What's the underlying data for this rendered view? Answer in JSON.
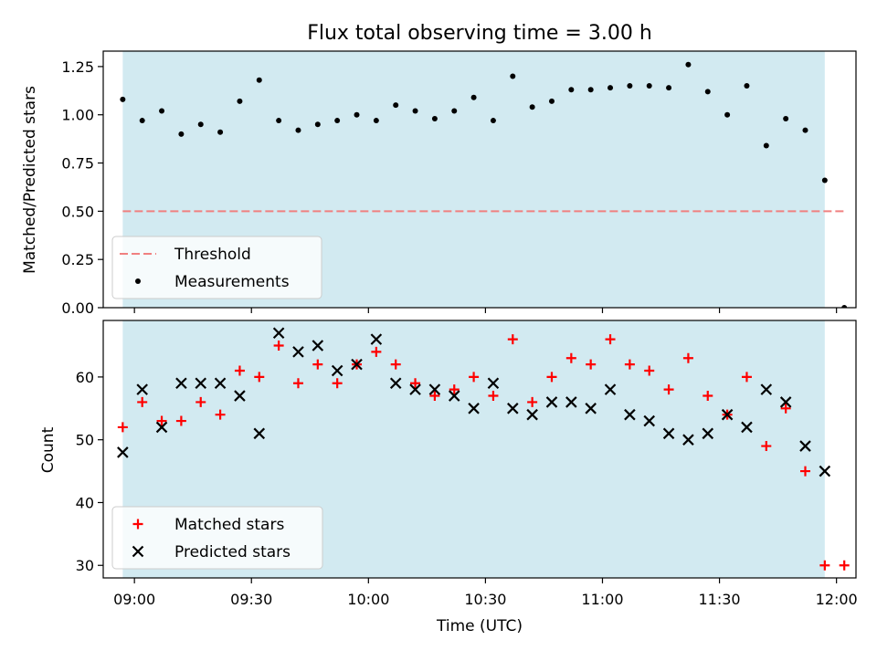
{
  "chart_data": {
    "type": "scatter",
    "title": "Flux total observing time = 3.00 h",
    "xlabel": "Time (UTC)",
    "xticks": [
      "09:00",
      "09:30",
      "10:00",
      "10:30",
      "11:00",
      "11:30",
      "12:00"
    ],
    "xlim": [
      "08:52",
      "12:05"
    ],
    "shaded_span": [
      "08:57",
      "11:57"
    ],
    "colors": {
      "shade": "#add8e6",
      "threshold": "#f08080",
      "measurement": "#000000",
      "matched": "#ff0000",
      "predicted": "#000000"
    },
    "panels": [
      {
        "ylabel": "Matched/Predicted stars",
        "ylim": [
          0,
          1.33
        ],
        "yticks": [
          "0.00",
          "0.25",
          "0.50",
          "0.75",
          "1.00",
          "1.25"
        ],
        "legend": "lower-left",
        "threshold": {
          "name": "Threshold",
          "value": 0.5
        },
        "series": [
          {
            "name": "Measurements",
            "marker": "dot",
            "x": [
              "08:57",
              "09:02",
              "09:07",
              "09:12",
              "09:17",
              "09:22",
              "09:27",
              "09:32",
              "09:37",
              "09:42",
              "09:47",
              "09:52",
              "09:57",
              "10:02",
              "10:07",
              "10:12",
              "10:17",
              "10:22",
              "10:27",
              "10:32",
              "10:37",
              "10:42",
              "10:47",
              "10:52",
              "10:57",
              "11:02",
              "11:07",
              "11:12",
              "11:17",
              "11:22",
              "11:27",
              "11:32",
              "11:37",
              "11:42",
              "11:47",
              "11:52",
              "11:57",
              "12:02"
            ],
            "y": [
              1.08,
              0.97,
              1.02,
              0.9,
              0.95,
              0.91,
              1.07,
              1.18,
              0.97,
              0.92,
              0.95,
              0.97,
              1.0,
              0.97,
              1.05,
              1.02,
              0.98,
              1.02,
              1.09,
              0.97,
              1.2,
              1.04,
              1.07,
              1.13,
              1.13,
              1.14,
              1.15,
              1.15,
              1.14,
              1.26,
              1.12,
              1.0,
              1.15,
              0.84,
              0.98,
              0.92,
              0.66,
              0.0
            ]
          }
        ]
      },
      {
        "ylabel": "Count",
        "ylim": [
          28,
          69
        ],
        "yticks": [
          "30",
          "40",
          "50",
          "60"
        ],
        "legend": "lower-left",
        "series": [
          {
            "name": "Matched stars",
            "marker": "plus",
            "x": [
              "08:57",
              "09:02",
              "09:07",
              "09:12",
              "09:17",
              "09:22",
              "09:27",
              "09:32",
              "09:37",
              "09:42",
              "09:47",
              "09:52",
              "09:57",
              "10:02",
              "10:07",
              "10:12",
              "10:17",
              "10:22",
              "10:27",
              "10:32",
              "10:37",
              "10:42",
              "10:47",
              "10:52",
              "10:57",
              "11:02",
              "11:07",
              "11:12",
              "11:17",
              "11:22",
              "11:27",
              "11:32",
              "11:37",
              "11:42",
              "11:47",
              "11:52",
              "11:57",
              "12:02"
            ],
            "y": [
              52,
              56,
              53,
              53,
              56,
              54,
              61,
              60,
              65,
              59,
              62,
              59,
              62,
              64,
              62,
              59,
              57,
              58,
              60,
              57,
              66,
              56,
              60,
              63,
              62,
              66,
              62,
              61,
              58,
              63,
              57,
              54,
              60,
              49,
              55,
              45,
              30,
              30
            ]
          },
          {
            "name": "Predicted stars",
            "marker": "x",
            "x": [
              "08:57",
              "09:02",
              "09:07",
              "09:12",
              "09:17",
              "09:22",
              "09:27",
              "09:32",
              "09:37",
              "09:42",
              "09:47",
              "09:52",
              "09:57",
              "10:02",
              "10:07",
              "10:12",
              "10:17",
              "10:22",
              "10:27",
              "10:32",
              "10:37",
              "10:42",
              "10:47",
              "10:52",
              "10:57",
              "11:02",
              "11:07",
              "11:12",
              "11:17",
              "11:22",
              "11:27",
              "11:32",
              "11:37",
              "11:42",
              "11:47",
              "11:52",
              "11:57"
            ],
            "y": [
              48,
              58,
              52,
              59,
              59,
              59,
              57,
              51,
              67,
              64,
              65,
              61,
              62,
              66,
              59,
              58,
              58,
              57,
              55,
              59,
              55,
              54,
              56,
              56,
              55,
              58,
              54,
              53,
              51,
              50,
              51,
              54,
              52,
              58,
              56,
              49,
              45
            ]
          }
        ]
      }
    ]
  }
}
